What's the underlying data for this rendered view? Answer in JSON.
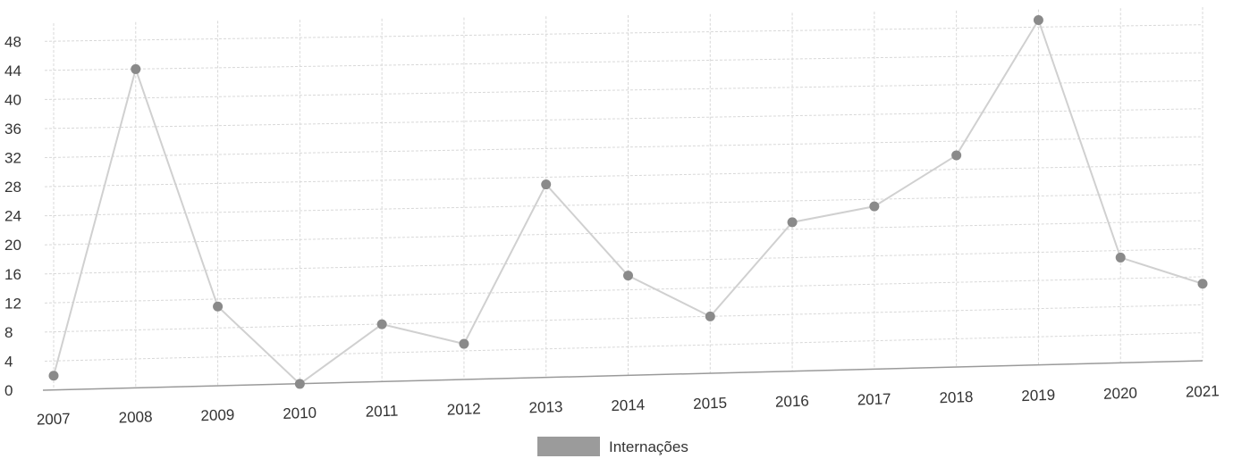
{
  "chart_data": {
    "type": "line",
    "title": "",
    "xlabel": "",
    "ylabel": "",
    "categories": [
      "2007",
      "2008",
      "2009",
      "2010",
      "2011",
      "2012",
      "2013",
      "2014",
      "2015",
      "2016",
      "2017",
      "2018",
      "2019",
      "2020",
      "2021"
    ],
    "series": [
      {
        "name": "Internações",
        "values": [
          2,
          44,
          11,
          0,
          8,
          5,
          27,
          14,
          8,
          21,
          23,
          30,
          49,
          15,
          11
        ],
        "line_color": "#d0d0d0",
        "point_color": "#8a8a8a"
      }
    ],
    "yticks": [
      0,
      4,
      8,
      12,
      16,
      20,
      24,
      28,
      32,
      36,
      40,
      44,
      48
    ],
    "ylim": [
      0,
      50
    ],
    "grid": true,
    "legend_position": "bottom-center",
    "legend_swatch_color": "#9b9b9b"
  }
}
